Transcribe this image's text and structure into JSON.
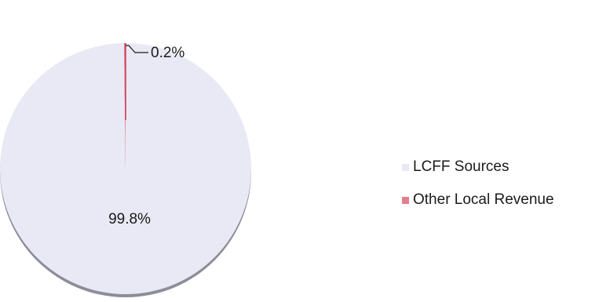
{
  "chart_data": {
    "type": "pie",
    "title": "",
    "slices": [
      {
        "label": "LCFF Sources",
        "value": 99.8,
        "display": "99.8%",
        "color": "#e9e9f5"
      },
      {
        "label": "Other Local Revenue",
        "value": 0.2,
        "display": "0.2%",
        "color": "#e0808a"
      }
    ],
    "highlight_line_color": "#d0304a",
    "shadow_color": "#8c8d99",
    "legend": {
      "position": "right"
    }
  }
}
